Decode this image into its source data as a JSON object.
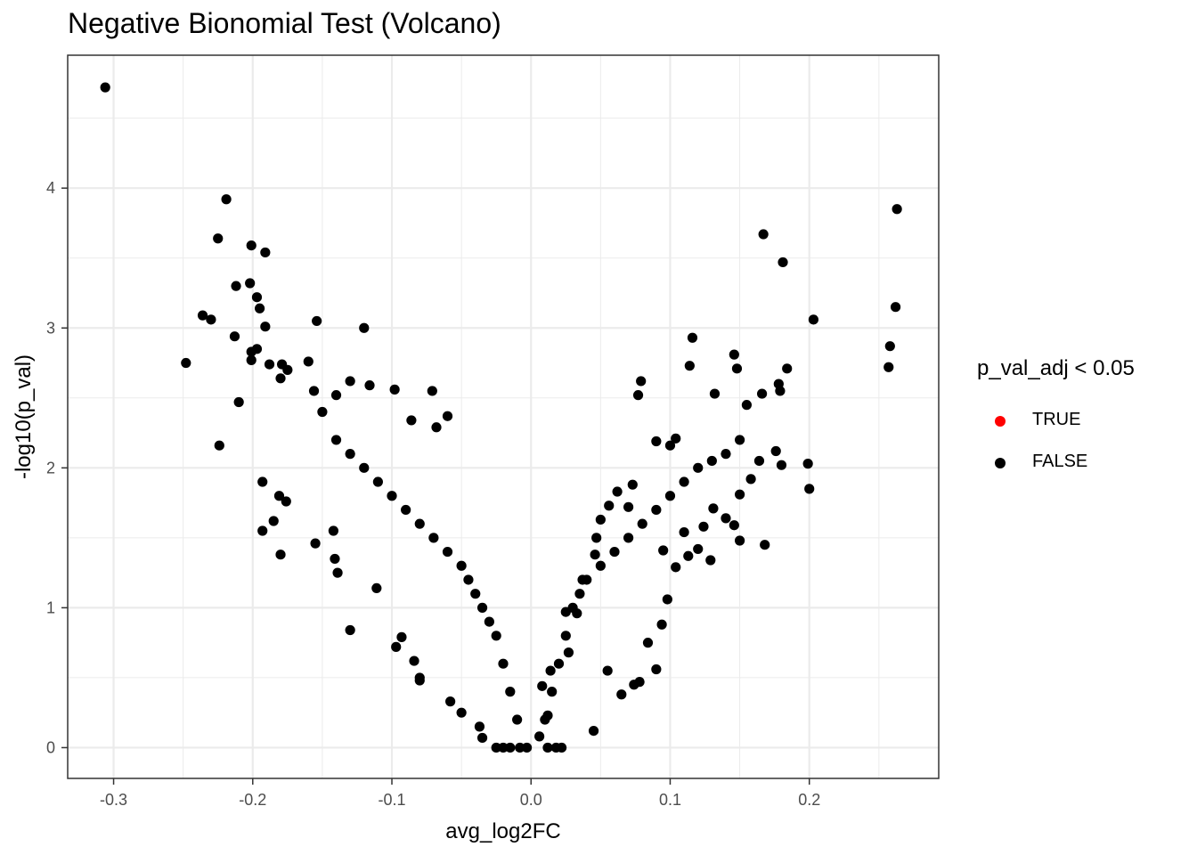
{
  "chart_data": {
    "type": "scatter",
    "title": "Negative Bionomial Test (Volcano)",
    "xlabel": "avg_log2FC",
    "ylabel": "-log10(p_val)",
    "xlim": [
      -0.333,
      0.293
    ],
    "ylim": [
      -0.22,
      4.95
    ],
    "xticks": [
      -0.3,
      -0.2,
      -0.1,
      0.0,
      0.1,
      0.2
    ],
    "xtick_labels": [
      "-0.3",
      "-0.2",
      "-0.1",
      "0.0",
      "0.1",
      "0.2"
    ],
    "yticks": [
      0,
      1,
      2,
      3,
      4
    ],
    "ytick_labels": [
      "0",
      "1",
      "2",
      "3",
      "4"
    ],
    "grid": true,
    "legend": {
      "title": "p_val_adj < 0.05",
      "position": "right",
      "entries": [
        {
          "label": "TRUE",
          "color": "#ff0000"
        },
        {
          "label": "FALSE",
          "color": "#000000"
        }
      ]
    },
    "series": [
      {
        "name": "FALSE",
        "color": "#000000",
        "points": [
          [
            -0.306,
            4.72
          ],
          [
            -0.219,
            3.92
          ],
          [
            -0.225,
            3.64
          ],
          [
            -0.201,
            3.59
          ],
          [
            -0.191,
            3.54
          ],
          [
            -0.202,
            3.32
          ],
          [
            -0.212,
            3.3
          ],
          [
            -0.197,
            3.22
          ],
          [
            -0.195,
            3.14
          ],
          [
            -0.236,
            3.09
          ],
          [
            -0.23,
            3.06
          ],
          [
            -0.191,
            3.01
          ],
          [
            -0.213,
            2.94
          ],
          [
            -0.197,
            2.85
          ],
          [
            -0.201,
            2.83
          ],
          [
            -0.201,
            2.77
          ],
          [
            -0.248,
            2.75
          ],
          [
            -0.21,
            2.47
          ],
          [
            -0.224,
            2.16
          ],
          [
            -0.154,
            3.05
          ],
          [
            -0.12,
            3.0
          ],
          [
            -0.179,
            2.74
          ],
          [
            -0.175,
            2.7
          ],
          [
            -0.16,
            2.76
          ],
          [
            -0.188,
            2.74
          ],
          [
            -0.18,
            2.64
          ],
          [
            -0.156,
            2.55
          ],
          [
            -0.14,
            2.52
          ],
          [
            -0.13,
            2.62
          ],
          [
            -0.116,
            2.59
          ],
          [
            -0.098,
            2.56
          ],
          [
            -0.071,
            2.55
          ],
          [
            -0.06,
            2.37
          ],
          [
            -0.086,
            2.34
          ],
          [
            -0.068,
            2.29
          ],
          [
            -0.193,
            1.9
          ],
          [
            -0.185,
            1.62
          ],
          [
            -0.18,
            1.38
          ],
          [
            -0.193,
            1.55
          ],
          [
            -0.181,
            1.8
          ],
          [
            -0.176,
            1.76
          ],
          [
            -0.155,
            1.46
          ],
          [
            -0.142,
            1.55
          ],
          [
            -0.13,
            0.84
          ],
          [
            -0.141,
            1.35
          ],
          [
            -0.139,
            1.25
          ],
          [
            -0.111,
            1.14
          ],
          [
            -0.097,
            0.72
          ],
          [
            -0.093,
            0.79
          ],
          [
            -0.08,
            0.5
          ],
          [
            -0.08,
            0.48
          ],
          [
            -0.084,
            0.62
          ],
          [
            -0.058,
            0.33
          ],
          [
            -0.05,
            0.25
          ],
          [
            -0.037,
            0.15
          ],
          [
            -0.035,
            0.07
          ],
          [
            -0.025,
            0.0
          ],
          [
            -0.02,
            0.0
          ],
          [
            -0.015,
            0.0
          ],
          [
            -0.008,
            0.0
          ],
          [
            -0.003,
            0.0
          ],
          [
            0.012,
            0.0
          ],
          [
            0.018,
            0.0
          ],
          [
            0.022,
            0.0
          ],
          [
            0.006,
            0.08
          ],
          [
            0.012,
            0.23
          ],
          [
            0.008,
            0.44
          ],
          [
            0.014,
            0.55
          ],
          [
            0.027,
            0.68
          ],
          [
            0.025,
            0.97
          ],
          [
            0.033,
            0.96
          ],
          [
            0.037,
            1.2
          ],
          [
            0.046,
            1.38
          ],
          [
            0.047,
            1.5
          ],
          [
            0.045,
            0.12
          ],
          [
            0.05,
            1.63
          ],
          [
            0.056,
            1.73
          ],
          [
            0.062,
            1.83
          ],
          [
            0.07,
            1.72
          ],
          [
            0.073,
            1.88
          ],
          [
            0.077,
            2.52
          ],
          [
            0.079,
            2.62
          ],
          [
            0.09,
            2.19
          ],
          [
            0.1,
            2.16
          ],
          [
            0.104,
            2.21
          ],
          [
            0.114,
            2.73
          ],
          [
            0.116,
            2.93
          ],
          [
            0.132,
            2.53
          ],
          [
            0.146,
            2.81
          ],
          [
            0.148,
            2.71
          ],
          [
            0.155,
            2.45
          ],
          [
            0.166,
            2.53
          ],
          [
            0.167,
            3.67
          ],
          [
            0.181,
            3.47
          ],
          [
            0.178,
            2.6
          ],
          [
            0.179,
            2.55
          ],
          [
            0.184,
            2.71
          ],
          [
            0.203,
            3.06
          ],
          [
            0.199,
            2.03
          ],
          [
            0.2,
            1.85
          ],
          [
            0.168,
            1.45
          ],
          [
            0.176,
            2.12
          ],
          [
            0.18,
            2.02
          ],
          [
            0.158,
            1.92
          ],
          [
            0.164,
            2.05
          ],
          [
            0.15,
            1.48
          ],
          [
            0.15,
            1.81
          ],
          [
            0.146,
            1.59
          ],
          [
            0.14,
            1.64
          ],
          [
            0.131,
            1.71
          ],
          [
            0.129,
            1.34
          ],
          [
            0.124,
            1.58
          ],
          [
            0.12,
            1.42
          ],
          [
            0.113,
            1.37
          ],
          [
            0.11,
            1.54
          ],
          [
            0.104,
            1.29
          ],
          [
            0.098,
            1.06
          ],
          [
            0.095,
            1.41
          ],
          [
            0.094,
            0.88
          ],
          [
            0.084,
            0.75
          ],
          [
            0.09,
            0.56
          ],
          [
            0.078,
            0.47
          ],
          [
            0.074,
            0.45
          ],
          [
            0.065,
            0.38
          ],
          [
            0.055,
            0.55
          ],
          [
            0.263,
            3.85
          ],
          [
            0.262,
            3.15
          ],
          [
            0.258,
            2.87
          ],
          [
            0.257,
            2.72
          ],
          [
            -0.15,
            2.4
          ],
          [
            -0.14,
            2.2
          ],
          [
            -0.13,
            2.1
          ],
          [
            -0.12,
            2.0
          ],
          [
            -0.11,
            1.9
          ],
          [
            -0.1,
            1.8
          ],
          [
            -0.09,
            1.7
          ],
          [
            -0.08,
            1.6
          ],
          [
            -0.07,
            1.5
          ],
          [
            -0.06,
            1.4
          ],
          [
            -0.05,
            1.3
          ],
          [
            -0.045,
            1.2
          ],
          [
            -0.04,
            1.1
          ],
          [
            -0.035,
            1.0
          ],
          [
            -0.03,
            0.9
          ],
          [
            -0.025,
            0.8
          ],
          [
            -0.02,
            0.6
          ],
          [
            -0.015,
            0.4
          ],
          [
            -0.01,
            0.2
          ],
          [
            0.01,
            0.2
          ],
          [
            0.015,
            0.4
          ],
          [
            0.02,
            0.6
          ],
          [
            0.025,
            0.8
          ],
          [
            0.03,
            1.0
          ],
          [
            0.035,
            1.1
          ],
          [
            0.04,
            1.2
          ],
          [
            0.05,
            1.3
          ],
          [
            0.06,
            1.4
          ],
          [
            0.07,
            1.5
          ],
          [
            0.08,
            1.6
          ],
          [
            0.09,
            1.7
          ],
          [
            0.1,
            1.8
          ],
          [
            0.11,
            1.9
          ],
          [
            0.12,
            2.0
          ],
          [
            0.13,
            2.05
          ],
          [
            0.14,
            2.1
          ],
          [
            0.15,
            2.2
          ]
        ]
      }
    ]
  }
}
